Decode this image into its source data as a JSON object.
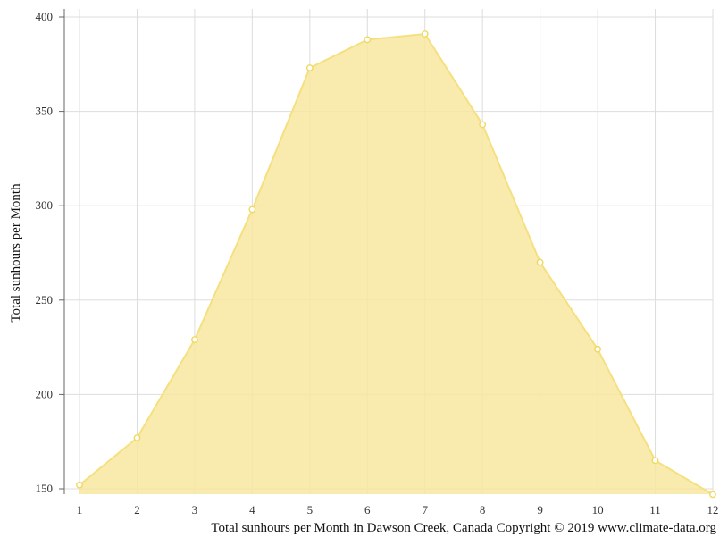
{
  "caption": "Total sunhours per Month in Dawson Creek, Canada Copyright © 2019 www.climate-data.org",
  "chart_data": {
    "type": "area",
    "title": "",
    "xlabel": "",
    "ylabel": "Total sunhours per Month",
    "x": [
      1,
      2,
      3,
      4,
      5,
      6,
      7,
      8,
      9,
      10,
      11,
      12
    ],
    "series": [
      {
        "values": [
          152,
          177,
          229,
          298,
          373,
          388,
          391,
          343,
          270,
          224,
          165,
          147
        ]
      }
    ],
    "xlim": [
      1,
      12
    ],
    "ylim": [
      147,
      404
    ],
    "yticks": [
      150,
      200,
      250,
      300,
      350,
      400
    ],
    "xticks": [
      1,
      2,
      3,
      4,
      5,
      6,
      7,
      8,
      9,
      10,
      11,
      12
    ],
    "grid": true,
    "colors": {
      "fill": "#f8e6a0",
      "line": "#f5e080",
      "marker": "#f0d860",
      "grid": "#dddddd",
      "axis": "#666666"
    }
  }
}
